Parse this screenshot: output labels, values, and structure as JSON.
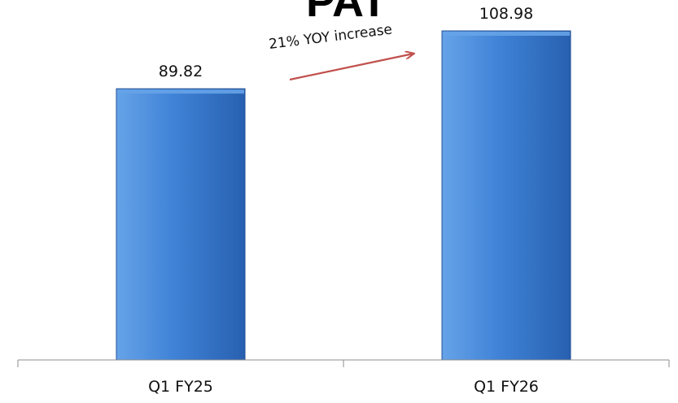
{
  "chart_data": {
    "type": "bar",
    "title": "PAT",
    "categories": [
      "Q1  FY25",
      "Q1  FY26"
    ],
    "values": [
      89.82,
      108.98
    ],
    "data_labels": [
      "89.82",
      "108.98"
    ],
    "ylim": [
      0,
      108.98
    ],
    "grid": false,
    "legend": "none",
    "annotation": {
      "text": "21% YOY increase"
    },
    "colors": {
      "bar_top": "#66a3e8",
      "bar_mid": "#3f82d6",
      "bar_dark": "#2860b0",
      "bar_edge": "#234f93",
      "axis": "#8c8c8c",
      "arrow": "#c0504d"
    }
  }
}
